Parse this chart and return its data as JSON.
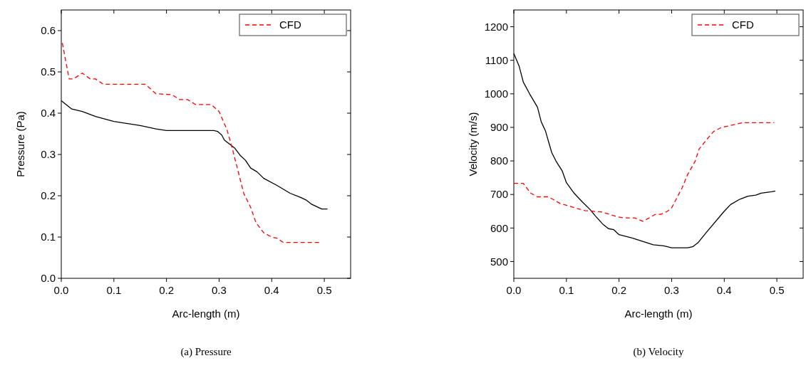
{
  "chart_data": [
    {
      "type": "line",
      "xlabel": "Arc-length (m)",
      "ylabel": "Pressure (Pa)",
      "annotations": [
        "(a) Pressure"
      ],
      "xlim": [
        0,
        0.55
      ],
      "ylim": [
        0,
        0.65
      ],
      "xticks": [
        {
          "value": 0,
          "label": "0.0"
        },
        0.1,
        0.2,
        0.3,
        0.4,
        0.5
      ],
      "yticks": [
        {
          "value": 0,
          "label": "0.0"
        },
        0.1,
        0.2,
        0.3,
        0.4,
        0.5,
        0.6
      ],
      "legend": "top right",
      "grid": false,
      "series": [
        {
          "color": "#000000",
          "line_style": "solid",
          "x": [
            0,
            0.02,
            0.04,
            0.065,
            0.1,
            0.15,
            0.18,
            0.2,
            0.29,
            0.297,
            0.305,
            0.31,
            0.33,
            0.34,
            0.35,
            0.36,
            0.372,
            0.385,
            0.41,
            0.435,
            0.455,
            0.465,
            0.475,
            0.495,
            0.506
          ],
          "values": [
            0.43,
            0.41,
            0.404,
            0.392,
            0.38,
            0.37,
            0.362,
            0.358,
            0.358,
            0.356,
            0.347,
            0.335,
            0.315,
            0.298,
            0.286,
            0.267,
            0.258,
            0.242,
            0.225,
            0.206,
            0.196,
            0.19,
            0.18,
            0.168,
            0.168
          ]
        },
        {
          "name": "CFD",
          "color": "#ff0000",
          "line_style": "dashed",
          "x": [
            0.002,
            0.015,
            0.023,
            0.04,
            0.055,
            0.065,
            0.08,
            0.16,
            0.18,
            0.21,
            0.225,
            0.24,
            0.255,
            0.285,
            0.3,
            0.315,
            0.325,
            0.335,
            0.347,
            0.36,
            0.37,
            0.385,
            0.4,
            0.41,
            0.422,
            0.49
          ],
          "values": [
            0.57,
            0.483,
            0.483,
            0.497,
            0.483,
            0.483,
            0.47,
            0.47,
            0.447,
            0.445,
            0.433,
            0.433,
            0.421,
            0.421,
            0.404,
            0.36,
            0.315,
            0.265,
            0.205,
            0.172,
            0.135,
            0.11,
            0.1,
            0.097,
            0.087,
            0.087
          ]
        }
      ]
    },
    {
      "type": "line",
      "xlabel": "Arc-length (m)",
      "ylabel": "Velocity (m/s)",
      "annotations": [
        "(b) Velocity"
      ],
      "xlim": [
        0,
        0.55
      ],
      "ylim": [
        450,
        1250
      ],
      "xticks": [
        {
          "value": 0,
          "label": "0.0"
        },
        0.1,
        0.2,
        0.3,
        0.4,
        0.5
      ],
      "yticks": [
        500,
        600,
        700,
        800,
        900,
        1000,
        1100,
        1200
      ],
      "legend": "top right",
      "grid": false,
      "series": [
        {
          "color": "#000000",
          "line_style": "solid",
          "x": [
            0,
            0.01,
            0.018,
            0.03,
            0.045,
            0.052,
            0.06,
            0.072,
            0.08,
            0.092,
            0.1,
            0.115,
            0.13,
            0.145,
            0.155,
            0.17,
            0.18,
            0.19,
            0.2,
            0.225,
            0.265,
            0.285,
            0.3,
            0.33,
            0.34,
            0.35,
            0.365,
            0.4,
            0.412,
            0.43,
            0.445,
            0.46,
            0.47,
            0.49,
            0.497
          ],
          "values": [
            1120,
            1083,
            1035,
            1000,
            960,
            917,
            890,
            825,
            800,
            770,
            735,
            703,
            678,
            655,
            636,
            610,
            598,
            595,
            580,
            570,
            550,
            547,
            541,
            541,
            544,
            556,
            585,
            650,
            670,
            686,
            695,
            698,
            704,
            708,
            710
          ]
        },
        {
          "name": "CFD",
          "color": "#ff0000",
          "line_style": "dashed",
          "x": [
            0,
            0.018,
            0.032,
            0.045,
            0.065,
            0.075,
            0.088,
            0.1,
            0.12,
            0.135,
            0.165,
            0.18,
            0.195,
            0.21,
            0.23,
            0.245,
            0.255,
            0.268,
            0.28,
            0.292,
            0.3,
            0.31,
            0.32,
            0.33,
            0.345,
            0.352,
            0.37,
            0.38,
            0.395,
            0.41,
            0.435,
            0.495
          ],
          "values": [
            733,
            733,
            704,
            693,
            693,
            685,
            673,
            668,
            658,
            652,
            648,
            642,
            634,
            630,
            630,
            620,
            628,
            640,
            641,
            650,
            660,
            690,
            720,
            758,
            800,
            835,
            870,
            888,
            900,
            905,
            914,
            914
          ]
        }
      ]
    }
  ]
}
